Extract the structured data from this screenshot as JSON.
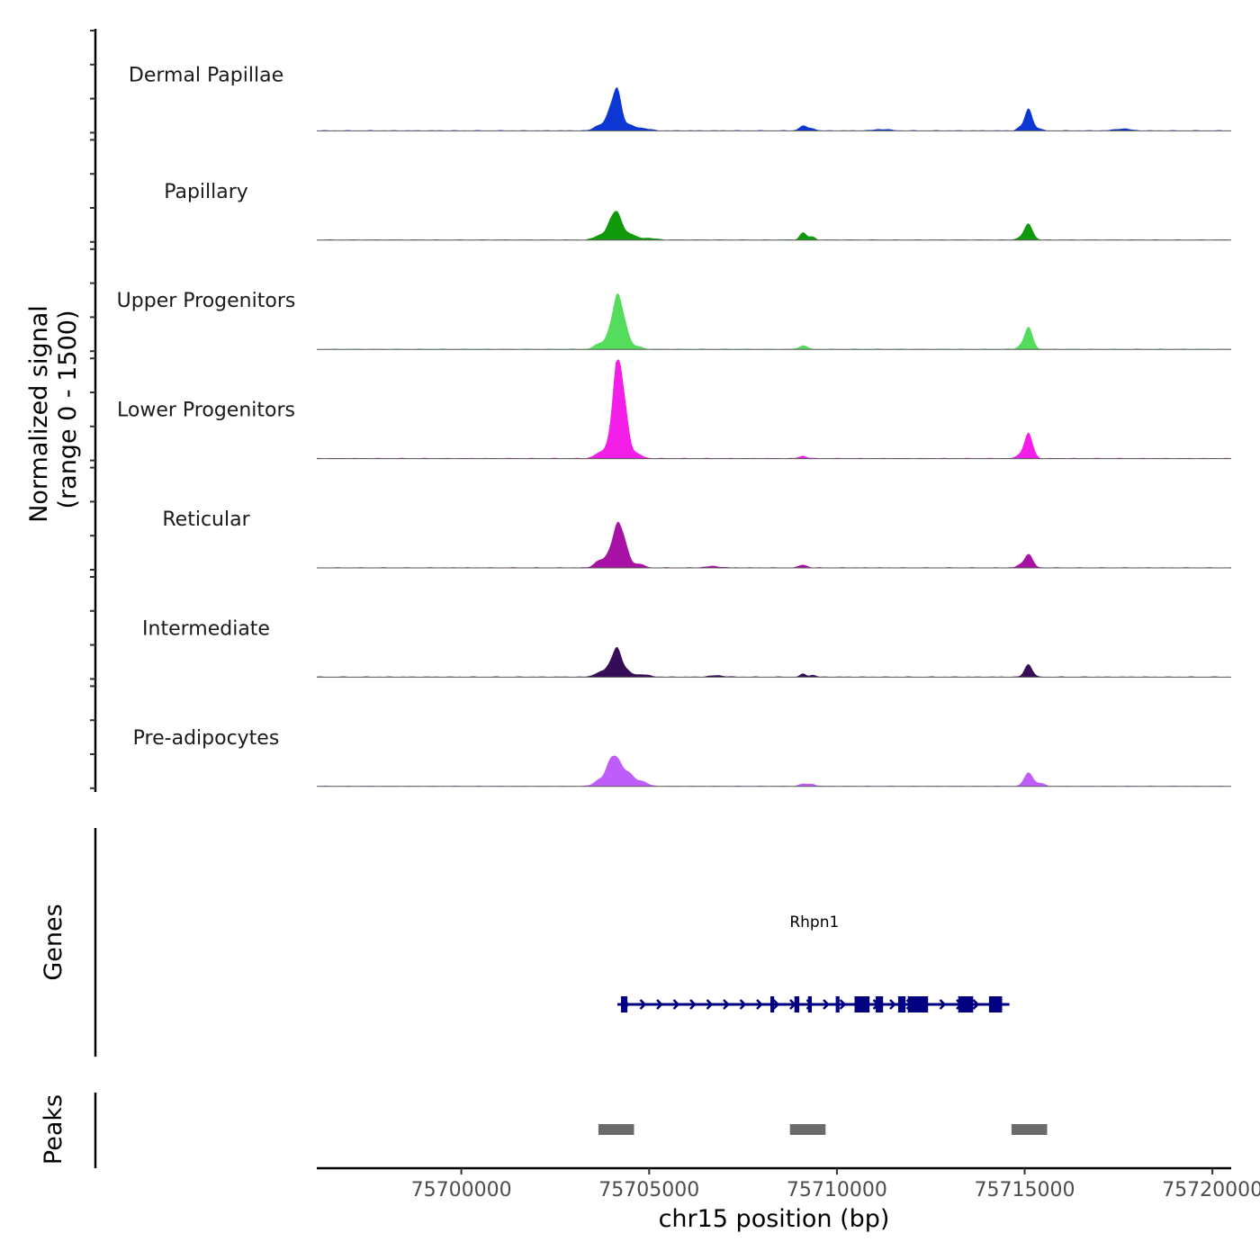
{
  "chart_data": {
    "type": "area",
    "title": "",
    "ylabel_line1": "Normalized signal",
    "ylabel_line2": "(range 0 - 1500)",
    "y_range": [
      0,
      1500
    ],
    "xlabel": "chr15 position (bp)",
    "x_range": [
      75696150,
      75720500
    ],
    "x_ticks": [
      75700000,
      75705000,
      75710000,
      75715000,
      75720000
    ],
    "x_tick_labels": [
      "75700000",
      "75705000",
      "75710000",
      "75715000",
      "75720000"
    ],
    "peak_positions": [
      75703950,
      75704150,
      75704350,
      75709100,
      75709300,
      75715100
    ],
    "tracks": [
      {
        "name": "Dermal Papillae",
        "color": "#0d37d3",
        "peaks": [
          [
            75703700,
            0.12,
            150
          ],
          [
            75703950,
            0.3,
            100
          ],
          [
            75704150,
            0.82,
            110
          ],
          [
            75704450,
            0.1,
            150
          ],
          [
            75704800,
            0.05,
            200
          ],
          [
            75709100,
            0.1,
            100
          ],
          [
            75709350,
            0.05,
            80
          ],
          [
            75711200,
            0.03,
            200
          ],
          [
            75714850,
            0.05,
            80
          ],
          [
            75715100,
            0.45,
            100
          ],
          [
            75715350,
            0.04,
            100
          ],
          [
            75717600,
            0.04,
            200
          ]
        ]
      },
      {
        "name": "Papillary",
        "color": "#109a0b",
        "peaks": [
          [
            75703700,
            0.1,
            150
          ],
          [
            75703950,
            0.25,
            100
          ],
          [
            75704150,
            0.53,
            120
          ],
          [
            75704450,
            0.12,
            150
          ],
          [
            75704900,
            0.04,
            250
          ],
          [
            75709100,
            0.15,
            90
          ],
          [
            75709350,
            0.06,
            80
          ],
          [
            75715100,
            0.33,
            110
          ],
          [
            75714850,
            0.04,
            80
          ]
        ]
      },
      {
        "name": "Upper Progenitors",
        "color": "#54dd5c",
        "peaks": [
          [
            75703700,
            0.12,
            150
          ],
          [
            75703950,
            0.28,
            100
          ],
          [
            75704150,
            1.0,
            110
          ],
          [
            75704350,
            0.45,
            110
          ],
          [
            75704650,
            0.06,
            150
          ],
          [
            75709100,
            0.08,
            100
          ],
          [
            75715100,
            0.45,
            110
          ],
          [
            75714850,
            0.04,
            80
          ]
        ]
      },
      {
        "name": "Lower Progenitors",
        "color": "#f31fe8",
        "peaks": [
          [
            75703700,
            0.12,
            150
          ],
          [
            75703950,
            0.28,
            100
          ],
          [
            75704150,
            1.9,
            110
          ],
          [
            75704350,
            0.9,
            110
          ],
          [
            75704650,
            0.1,
            150
          ],
          [
            75709100,
            0.05,
            100
          ],
          [
            75715100,
            0.52,
            110
          ],
          [
            75714850,
            0.06,
            80
          ]
        ]
      },
      {
        "name": "Reticular",
        "color": "#a711a4",
        "peaks": [
          [
            75703700,
            0.15,
            150
          ],
          [
            75703950,
            0.22,
            100
          ],
          [
            75704150,
            0.8,
            110
          ],
          [
            75704350,
            0.45,
            110
          ],
          [
            75704700,
            0.08,
            150
          ],
          [
            75706700,
            0.03,
            200
          ],
          [
            75709100,
            0.06,
            100
          ],
          [
            75715100,
            0.28,
            110
          ],
          [
            75714850,
            0.04,
            80
          ]
        ]
      },
      {
        "name": "Intermediate",
        "color": "#360c56",
        "peaks": [
          [
            75703700,
            0.1,
            150
          ],
          [
            75703950,
            0.18,
            100
          ],
          [
            75704150,
            0.57,
            110
          ],
          [
            75704400,
            0.12,
            120
          ],
          [
            75704800,
            0.05,
            200
          ],
          [
            75706800,
            0.03,
            200
          ],
          [
            75709100,
            0.06,
            80
          ],
          [
            75709350,
            0.04,
            80
          ],
          [
            75715100,
            0.26,
            100
          ]
        ]
      },
      {
        "name": "Pre-adipocytes",
        "color": "#be5dfa",
        "peaks": [
          [
            75703700,
            0.14,
            150
          ],
          [
            75703950,
            0.35,
            110
          ],
          [
            75704150,
            0.5,
            130
          ],
          [
            75704450,
            0.25,
            140
          ],
          [
            75704800,
            0.1,
            150
          ],
          [
            75709100,
            0.05,
            100
          ],
          [
            75709350,
            0.05,
            80
          ],
          [
            75715100,
            0.28,
            110
          ],
          [
            75715400,
            0.06,
            120
          ]
        ]
      }
    ],
    "gene_track": {
      "label": "Genes",
      "gene_name": "Rhpn1",
      "color": "#000080",
      "start": 75704250,
      "end": 75714500,
      "exons": [
        [
          75704250,
          75704420
        ],
        [
          75708230,
          75708330
        ],
        [
          75708870,
          75709000
        ],
        [
          75709230,
          75709330
        ],
        [
          75709970,
          75710070
        ],
        [
          75710470,
          75710870
        ],
        [
          75711030,
          75711230
        ],
        [
          75711630,
          75711830
        ],
        [
          75711890,
          75712430
        ],
        [
          75713230,
          75713630
        ],
        [
          75714050,
          75714400
        ]
      ]
    },
    "peaks_track": {
      "label": "Peaks",
      "color": "#6b6b6b",
      "regions": [
        [
          75703650,
          75704600
        ],
        [
          75708750,
          75709700
        ],
        [
          75714650,
          75715600
        ]
      ]
    }
  }
}
